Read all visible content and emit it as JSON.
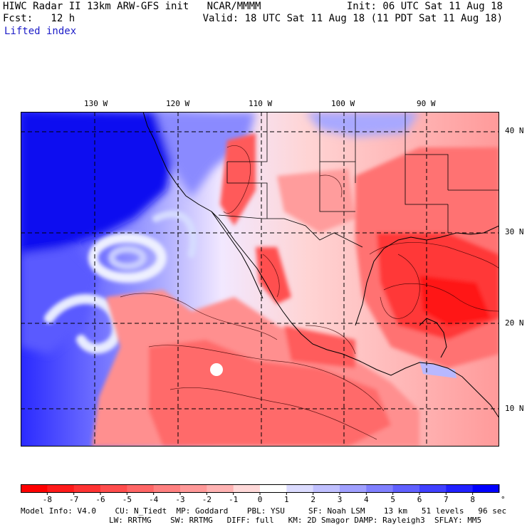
{
  "header": {
    "left_line1": "HIWC Radar II 13km ARW-GFS init   NCAR/MMMM",
    "left_line2": "Fcst:   12 h",
    "right_line1": "Init: 06 UTC Sat 11 Aug 18",
    "right_line2": "Valid: 18 UTC Sat 11 Aug 18 (11 PDT Sat 11 Aug 18)",
    "field": "Lifted index"
  },
  "map": {
    "lon_labels": [
      "130 W",
      "120 W",
      "110 W",
      "100 W",
      "90 W"
    ],
    "lat_labels": [
      "40 N",
      "30 N",
      "20 N",
      "10 N"
    ]
  },
  "colorbar": {
    "ticks": [
      "-8",
      "-7",
      "-6",
      "-5",
      "-4",
      "-3",
      "-2",
      "-1",
      "0",
      "1",
      "2",
      "3",
      "4",
      "5",
      "6",
      "7",
      "8"
    ],
    "unit": "°C",
    "colors": [
      "#ff0000",
      "#ff1a1a",
      "#ff3333",
      "#ff4d4d",
      "#ff6666",
      "#ff8080",
      "#ff9999",
      "#ffb3b3",
      "#ffd9d9",
      "#ffffff",
      "#dcdcff",
      "#c0c0ff",
      "#a0a0ff",
      "#8080ff",
      "#6060ff",
      "#4040ff",
      "#2020ff",
      "#0000ff"
    ]
  },
  "footer": {
    "line1": "Model Info: V4.0    CU: N_Tiedt  MP: Goddard    PBL: YSU     SF: Noah LSM    13 km   51 levels   96 sec",
    "line2": "LW: RRTMG    SW: RRTMG   DIFF: full   KM: 2D Smagor DAMP: Rayleigh3  SFLAY: MM5"
  }
}
